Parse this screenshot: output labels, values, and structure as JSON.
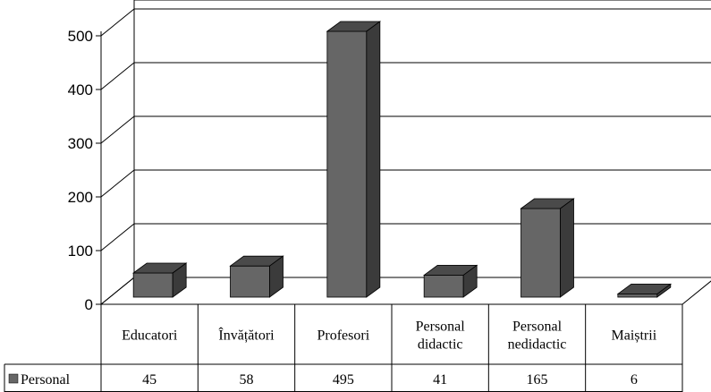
{
  "chart_data": {
    "type": "bar",
    "categories": [
      [
        "Educatori"
      ],
      [
        "Învățători"
      ],
      [
        "Profesori"
      ],
      [
        "Personal",
        "didactic"
      ],
      [
        "Personal",
        "nedidactic"
      ],
      [
        "Maiștrii"
      ]
    ],
    "series": [
      {
        "name": "Personal",
        "values": [
          45,
          58,
          495,
          41,
          165,
          6
        ],
        "color": "#666666"
      }
    ],
    "yticks": [
      "0",
      "100",
      "200",
      "300",
      "400",
      "500"
    ],
    "ylim": [
      0,
      500
    ],
    "grid": true,
    "legend": "data-table-left",
    "data_table": true,
    "three_d": true
  }
}
